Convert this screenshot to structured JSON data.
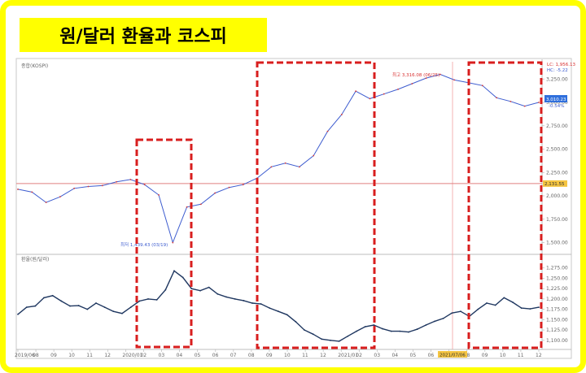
{
  "title": "원/달러 환율과 코스피",
  "chart_data": [
    {
      "type": "line",
      "panel_label": "종합(KOSPI)",
      "ylim": [
        1400,
        3400
      ],
      "y_ticks": [
        {
          "v": 3250,
          "label": "3,250.00"
        },
        {
          "v": 3000,
          "label": "3,000.00"
        },
        {
          "v": 2750,
          "label": "2,750.00"
        },
        {
          "v": 2500,
          "label": "2,500.00"
        },
        {
          "v": 2250,
          "label": "2,250.00"
        },
        {
          "v": 2000,
          "label": "2,000.00"
        },
        {
          "v": 1750,
          "label": "1,750.00"
        },
        {
          "v": 1500,
          "label": "1,500.00"
        }
      ],
      "x_ticks": [
        "2019/06",
        "08",
        "09",
        "10",
        "11",
        "12",
        "2020/01",
        "02",
        "03",
        "04",
        "05",
        "06",
        "07",
        "08",
        "09",
        "10",
        "11",
        "12",
        "2021/01",
        "02",
        "03",
        "04",
        "05",
        "06",
        "07",
        "08",
        "09",
        "10",
        "11",
        "12"
      ],
      "series": [
        {
          "values": [
            2070,
            2040,
            1930,
            1990,
            2080,
            2100,
            2110,
            2150,
            2175,
            2120,
            2010,
            1500,
            1880,
            1910,
            2030,
            2090,
            2120,
            2190,
            2310,
            2350,
            2310,
            2430,
            2690,
            2870,
            3120,
            3040,
            3090,
            3140,
            3200,
            3260,
            3300,
            3240,
            3210,
            3180,
            3050,
            3010,
            2960,
            3000
          ]
        }
      ],
      "reference_line": {
        "value": 2131.55,
        "label": "2,131.55"
      },
      "last_value": {
        "label": "3,010.23",
        "change": "-0.54%"
      },
      "annotations": {
        "high": "최고 3,316.08 (06/25)",
        "low": "최저 1,439.43 (03/19)",
        "lc": "LC: 1,956.13",
        "hc": "HC: -5.22"
      }
    },
    {
      "type": "line",
      "panel_label": "환율(원/달러)",
      "ylim": [
        1082,
        1298
      ],
      "y_ticks": [
        {
          "v": 1275,
          "label": "1,275.00"
        },
        {
          "v": 1250,
          "label": "1,250.00"
        },
        {
          "v": 1225,
          "label": "1,225.00"
        },
        {
          "v": 1200,
          "label": "1,200.00"
        },
        {
          "v": 1175,
          "label": "1,175.00"
        },
        {
          "v": 1150,
          "label": "1,150.00"
        },
        {
          "v": 1125,
          "label": "1,125.00"
        },
        {
          "v": 1100,
          "label": "1,100.00"
        }
      ],
      "series": [
        {
          "values": [
            1163,
            1180,
            1183,
            1203,
            1208,
            1195,
            1183,
            1184,
            1175,
            1190,
            1180,
            1170,
            1165,
            1180,
            1195,
            1200,
            1198,
            1222,
            1268,
            1252,
            1225,
            1220,
            1228,
            1212,
            1205,
            1200,
            1196,
            1190,
            1188,
            1178,
            1170,
            1162,
            1145,
            1125,
            1115,
            1103,
            1100,
            1098,
            1110,
            1122,
            1133,
            1137,
            1128,
            1122,
            1122,
            1120,
            1127,
            1137,
            1146,
            1153,
            1166,
            1170,
            1158,
            1175,
            1190,
            1185,
            1203,
            1192,
            1178,
            1176,
            1180
          ]
        }
      ]
    }
  ],
  "date_marker": "2021/07/06",
  "highlight_boxes": 4
}
